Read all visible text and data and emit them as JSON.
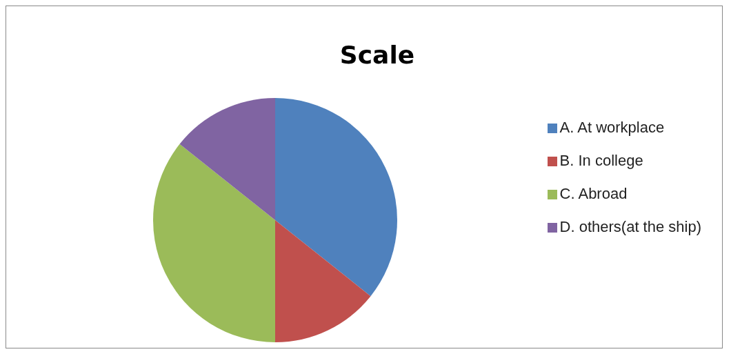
{
  "chart_data": {
    "type": "pie",
    "title": "Scale",
    "categories": [
      "A. At workplace",
      "B. In college",
      "C. Abroad",
      "D. others(at the ship)"
    ],
    "values": [
      35.7,
      14.3,
      35.7,
      14.3
    ],
    "colors": [
      "#4f81bd",
      "#c0504d",
      "#9bbb59",
      "#8064a2"
    ],
    "legend": "right"
  }
}
